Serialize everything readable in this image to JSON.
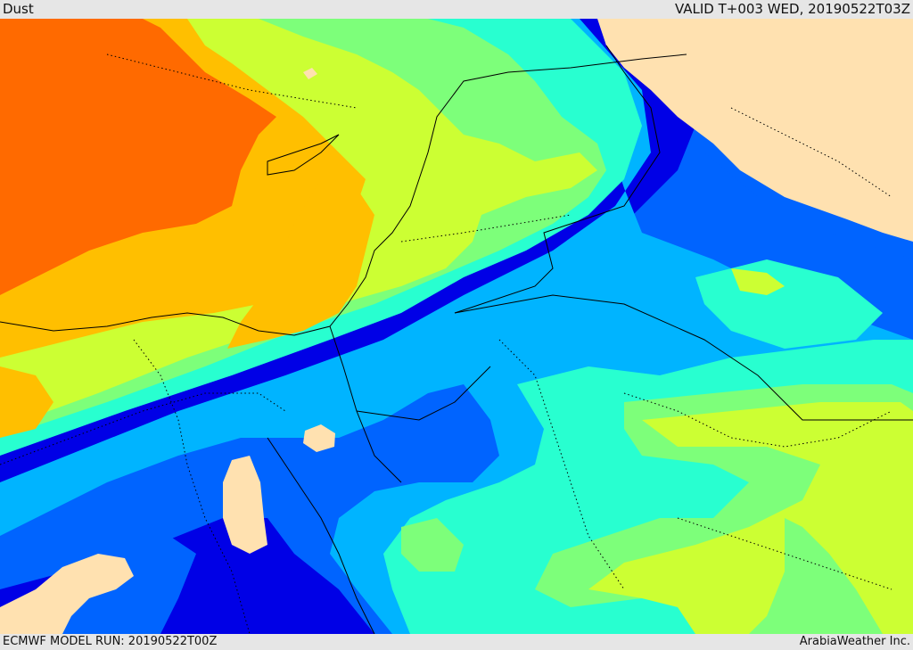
{
  "header": {
    "title": "Dust",
    "valid": "VALID T+003 WED, 20190522T03Z"
  },
  "footer": {
    "model_run": "ECMWF MODEL RUN: 20190522T00Z",
    "credit": "ArabiaWeather Inc."
  },
  "map": {
    "variable": "dust concentration",
    "palette": {
      "very_high": "#ff6a00",
      "high": "#ffbf00",
      "elevated": "#ccff33",
      "moderate": "#7dff7a",
      "low": "#28ffd0",
      "lower": "#00b4ff",
      "very_low": "#0064ff",
      "minimal": "#0000e6",
      "none": "#ffe1b0",
      "borders": "#000000"
    }
  }
}
